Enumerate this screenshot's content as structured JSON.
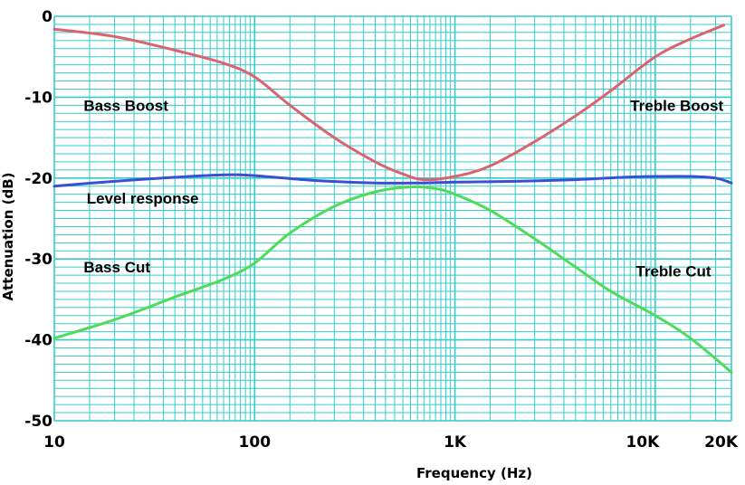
{
  "chart_data": {
    "type": "line",
    "title": "",
    "xlabel": "Frequency (Hz)",
    "ylabel": "Attenuation (dB)",
    "x_scale": "log",
    "xlim": [
      10,
      24000
    ],
    "ylim": [
      -50,
      0
    ],
    "grid": true,
    "legend": "none",
    "colors": {
      "grid": "#33cccc",
      "plot_background": "#ffffff",
      "bass_boost": "#d9646e",
      "treble_boost": "#d9646e",
      "level_response": "#3a4fd6",
      "bass_cut": "#4ddb5a",
      "treble_cut": "#4ddb5a"
    },
    "x_ticks": [
      {
        "value": 10,
        "label": "10"
      },
      {
        "value": 100,
        "label": "100"
      },
      {
        "value": 1000,
        "label": "1K"
      },
      {
        "value": 10000,
        "label": "10K"
      },
      {
        "value": 20000,
        "label": "20K"
      }
    ],
    "y_ticks": [
      {
        "value": 0,
        "label": "0"
      },
      {
        "value": -10,
        "label": "-10"
      },
      {
        "value": -20,
        "label": "-20"
      },
      {
        "value": -30,
        "label": "-30"
      },
      {
        "value": -40,
        "label": "-40"
      },
      {
        "value": -50,
        "label": "-50"
      }
    ],
    "series": [
      {
        "key": "boost",
        "color": "#d9646e",
        "x": [
          10,
          20,
          40,
          70,
          100,
          150,
          250,
          400,
          550,
          700,
          1000,
          1500,
          2500,
          4000,
          6000,
          10000,
          15000,
          22000
        ],
        "y": [
          -1.6,
          -2.5,
          -4.2,
          -5.8,
          -7.5,
          -11,
          -15,
          -18,
          -19.5,
          -20.2,
          -19.8,
          -18.5,
          -15.5,
          -12.3,
          -9.2,
          -5.0,
          -2.8,
          -1.1
        ]
      },
      {
        "key": "level",
        "color": "#3a4fd6",
        "x": [
          10,
          20,
          40,
          70,
          100,
          200,
          400,
          700,
          1000,
          2000,
          4000,
          7000,
          10000,
          15000,
          20000,
          24000
        ],
        "y": [
          -21.0,
          -20.4,
          -19.9,
          -19.6,
          -19.7,
          -20.3,
          -20.6,
          -20.6,
          -20.5,
          -20.4,
          -20.2,
          -19.9,
          -19.8,
          -19.8,
          -20.0,
          -20.6
        ]
      },
      {
        "key": "cut",
        "color": "#4ddb5a",
        "x": [
          10,
          20,
          40,
          70,
          100,
          150,
          250,
          400,
          600,
          800,
          1000,
          1500,
          2500,
          4000,
          6000,
          10000,
          15000,
          24000
        ],
        "y": [
          -39.8,
          -37.5,
          -34.7,
          -32.5,
          -30.5,
          -26.8,
          -23.5,
          -21.7,
          -21.1,
          -21.3,
          -22.0,
          -24.0,
          -27.5,
          -31.0,
          -34.0,
          -37.0,
          -39.8,
          -44.0
        ]
      }
    ],
    "annotations": [
      {
        "text": "Bass Boost",
        "x": 14,
        "y": -11,
        "anchor": "start"
      },
      {
        "text": "Treble Boost",
        "x": 7500,
        "y": -11,
        "anchor": "start"
      },
      {
        "text": "Level response",
        "x": 14.5,
        "y": -22.5,
        "anchor": "start"
      },
      {
        "text": "Bass Cut",
        "x": 14,
        "y": -31,
        "anchor": "start"
      },
      {
        "text": "Treble Cut",
        "x": 8000,
        "y": -31.5,
        "anchor": "start"
      }
    ]
  }
}
